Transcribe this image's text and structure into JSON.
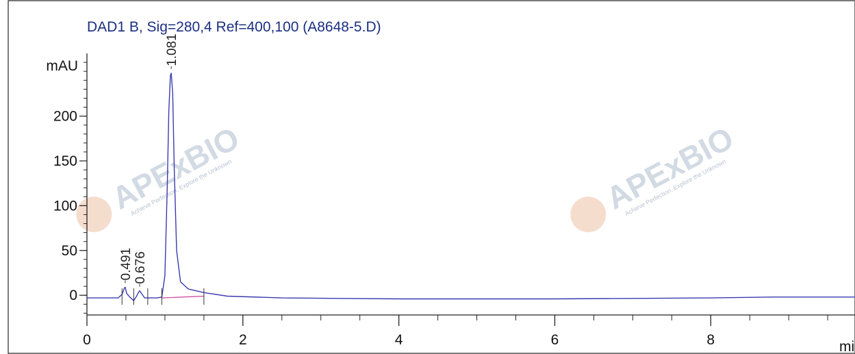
{
  "chart_data": {
    "type": "line",
    "title": "DAD1 B, Sig=280,4 Ref=400,100 (A8648-5.D)",
    "ylabel": "mAU",
    "xlabel": "min",
    "xlim": [
      0,
      9.85
    ],
    "ylim": [
      -22,
      270
    ],
    "x_ticks": [
      0,
      2,
      4,
      6,
      8
    ],
    "x_tick_labels": [
      "0",
      "2",
      "4",
      "6",
      "8"
    ],
    "y_ticks": [
      0,
      50,
      100,
      150,
      200
    ],
    "y_tick_labels": [
      "0",
      "50",
      "100",
      "150",
      "200"
    ],
    "grid": false,
    "series": [
      {
        "color": "#3a3ab0",
        "x": [
          0,
          0.4,
          0.45,
          0.48,
          0.491,
          0.51,
          0.55,
          0.6,
          0.63,
          0.66,
          0.676,
          0.7,
          0.74,
          0.8,
          0.9,
          0.96,
          1.0,
          1.03,
          1.05,
          1.07,
          1.081,
          1.1,
          1.12,
          1.15,
          1.2,
          1.3,
          1.5,
          1.8,
          2.5,
          4,
          6,
          8,
          8.8,
          9.2,
          9.85
        ],
        "y": [
          -3,
          -3,
          1,
          8,
          9,
          2,
          -2,
          -6,
          -2,
          3,
          5,
          2,
          -3,
          -3,
          -3,
          -2,
          22,
          120,
          205,
          245,
          248,
          225,
          140,
          50,
          15,
          7,
          3,
          -1,
          -3,
          -4,
          -4,
          -3,
          -2,
          -2,
          -2
        ]
      }
    ],
    "baselines": [
      {
        "color": "#d0409a",
        "x": [
          0.96,
          1.5
        ],
        "y": [
          -3,
          -1
        ]
      }
    ],
    "peaks": [
      {
        "x": 0.491,
        "y": 9,
        "label": "0.491"
      },
      {
        "x": 0.676,
        "y": 5,
        "label": "0.676"
      },
      {
        "x": 1.081,
        "y": 248,
        "label": "1.081"
      }
    ],
    "integration_marks": [
      0.45,
      0.6,
      0.78,
      0.96,
      1.5
    ]
  },
  "watermark": {
    "text": "APExBIO",
    "subtext": "Achieve Perfection, Explore the Unknown"
  }
}
